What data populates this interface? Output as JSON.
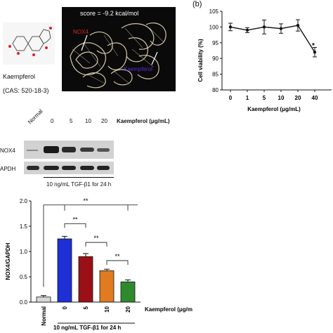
{
  "panel_b_label": "(b)",
  "molecule": {
    "name": "Kaempferol",
    "cas": "(CAS: 520-18-3)"
  },
  "docking": {
    "score": "score = -9.2 kcal/mol",
    "label_nox4": "NOX4",
    "label_ligand": "Kaempferol"
  },
  "western": {
    "conc_header": "Kaempferol (μg/mL)",
    "lane_normal": "Normal",
    "lane_concs": [
      "0",
      "5",
      "10",
      "20"
    ],
    "band_labels": [
      "NOX4",
      "APDH"
    ],
    "treatment": "10 ng/mL TGF-β1 for 24 h"
  },
  "colors": {
    "bar_colors": [
      "#d9d9d9",
      "#1f2fd6",
      "#9a1016",
      "#e07b22",
      "#2f8a2e"
    ],
    "viability_line": "#111111",
    "docking_bg": "#0a0a0a",
    "protein": "#e8dcb8",
    "nox4_label": "#d8232a",
    "ligand_label": "#5b2bd6"
  },
  "chart_data": [
    {
      "type": "line",
      "title": "",
      "ylabel": "Cell viability (%)",
      "xlabel": "Kaempferol (μg/mL)",
      "categories": [
        "0",
        "1",
        "5",
        "10",
        "20",
        "40"
      ],
      "values": [
        100,
        99,
        100,
        99.5,
        100.5,
        92
      ],
      "errors": [
        1.2,
        0.8,
        2.2,
        1.5,
        1.8,
        1.5
      ],
      "ylim": [
        80,
        105
      ],
      "yticks": [
        "80",
        "85",
        "90",
        "95",
        "100",
        "105"
      ],
      "annotation": "*"
    },
    {
      "type": "bar",
      "title": "",
      "ylabel": "NOX4/GAPDH",
      "xlabel": "Kaempferol (μg/mL)",
      "categories": [
        "Normal",
        "0",
        "5",
        "10",
        "20"
      ],
      "values": [
        0.1,
        1.25,
        0.9,
        0.62,
        0.4
      ],
      "errors": [
        0.03,
        0.05,
        0.06,
        0.03,
        0.04
      ],
      "ylim": [
        0,
        2.0
      ],
      "yticks": [
        "0.0",
        "0.5",
        "1.0",
        "1.5",
        "2.0"
      ],
      "significance": [
        "**",
        "**",
        "**",
        "**"
      ],
      "treatment": "10 ng/mL TGF-β1 for 24 h"
    }
  ]
}
